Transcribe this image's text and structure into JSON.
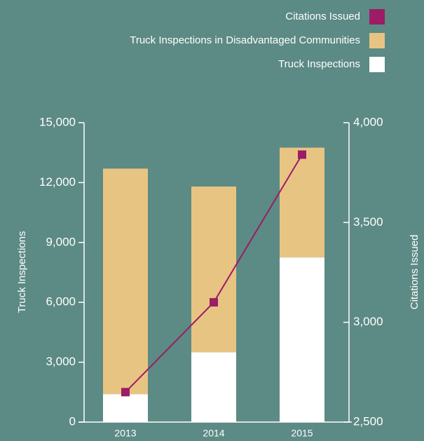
{
  "chart_data": {
    "type": "bar",
    "categories": [
      "2013",
      "2014",
      "2015"
    ],
    "series": [
      {
        "name": "Truck Inspections",
        "color": "#ffffff",
        "values": [
          1400,
          3500,
          8250
        ]
      },
      {
        "name": "Truck Inspections in Disadvantaged Communities",
        "color": "#e8c483",
        "values": [
          11300,
          8300,
          5500
        ]
      },
      {
        "name": "Citations Issued",
        "color": "#9c1c66",
        "axis": "y2",
        "values": [
          2650,
          3100,
          3840
        ]
      }
    ],
    "ylabel": "Truck Inspections",
    "y2label": "Citations Issued",
    "ylim": [
      0,
      15000
    ],
    "yticks": [
      0,
      {
        "value": 3000,
        "label": "3,000"
      },
      {
        "value": 6000,
        "label": "6,000"
      },
      {
        "value": 9000,
        "label": "9,000"
      },
      {
        "value": 12000,
        "label": "12,000"
      },
      {
        "value": 15000,
        "label": "15,000"
      }
    ],
    "y2lim": [
      2500,
      4000
    ],
    "y2ticks": [
      {
        "value": 2500,
        "label": "2,500"
      },
      {
        "value": 3000,
        "label": "3,000"
      },
      {
        "value": 3500,
        "label": "3,500"
      },
      {
        "value": 4000,
        "label": "4,000"
      }
    ],
    "legend": "top-right"
  }
}
